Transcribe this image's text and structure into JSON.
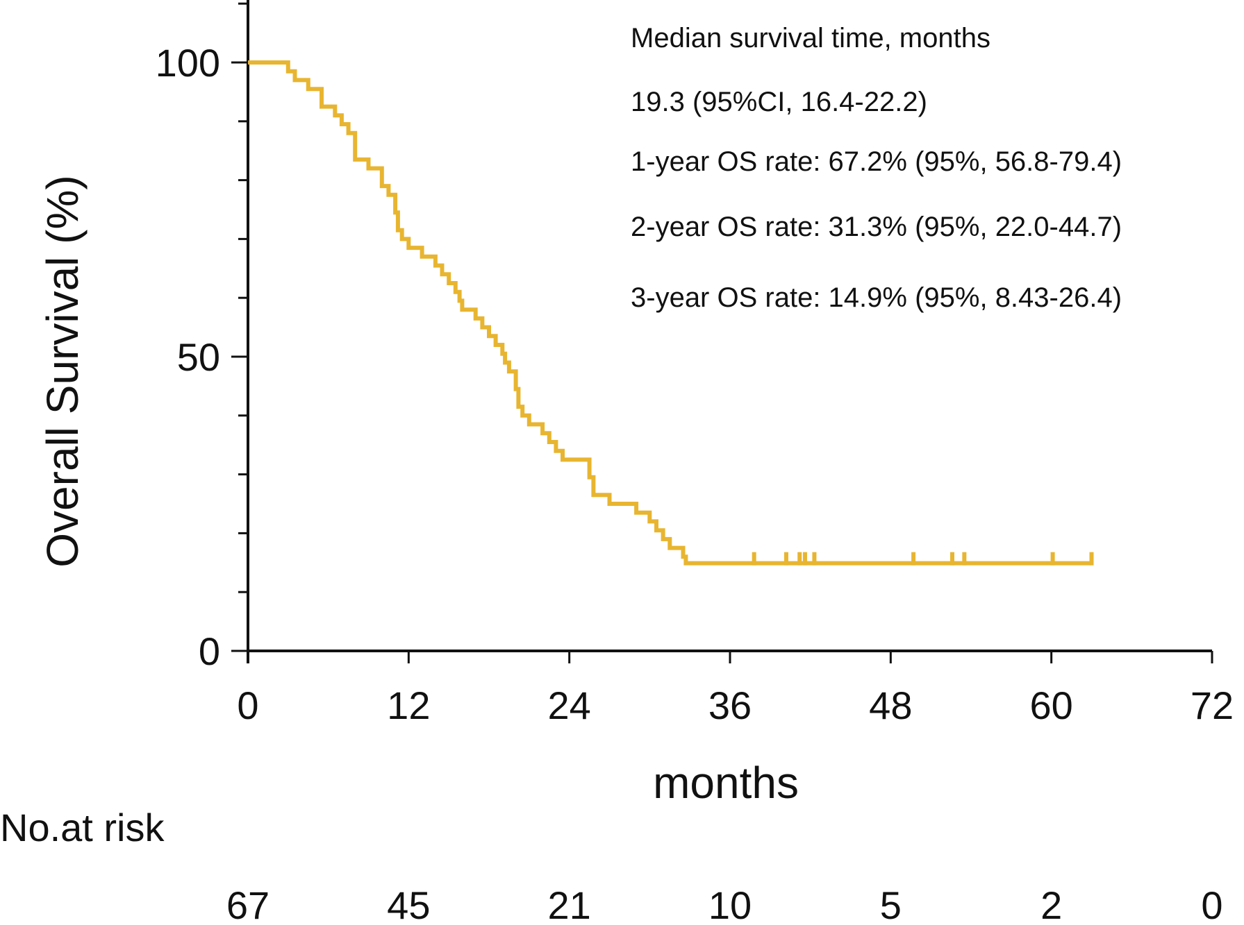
{
  "chart_data": {
    "type": "line",
    "subtype": "kaplan-meier",
    "title": "",
    "xlabel": "months",
    "ylabel": "Overall Survival (%)",
    "xlim": [
      0,
      72
    ],
    "ylim": [
      0,
      110
    ],
    "x_ticks": [
      0,
      12,
      24,
      36,
      48,
      60,
      72
    ],
    "y_ticks_labeled": [
      0,
      50,
      100
    ],
    "y_minor_step": 10,
    "series": [
      {
        "name": "Overall survival",
        "color": "#E8B530",
        "steps": [
          [
            0,
            100
          ],
          [
            3,
            100
          ],
          [
            3,
            98.5
          ],
          [
            3.5,
            98.5
          ],
          [
            3.5,
            97
          ],
          [
            4.5,
            97
          ],
          [
            4.5,
            95.5
          ],
          [
            5.5,
            95.5
          ],
          [
            5.5,
            92.5
          ],
          [
            6.5,
            92.5
          ],
          [
            6.5,
            91
          ],
          [
            7,
            91
          ],
          [
            7,
            89.5
          ],
          [
            7.5,
            89.5
          ],
          [
            7.5,
            88
          ],
          [
            8,
            88
          ],
          [
            8,
            86.5
          ],
          [
            8,
            86.5
          ],
          [
            8,
            83.5
          ],
          [
            9,
            83.5
          ],
          [
            9,
            82
          ],
          [
            10,
            82
          ],
          [
            10,
            80.5
          ],
          [
            10,
            80.5
          ],
          [
            10,
            79
          ],
          [
            10.5,
            79
          ],
          [
            10.5,
            77.5
          ],
          [
            11,
            77.5
          ],
          [
            11,
            74.5
          ],
          [
            11.2,
            74.5
          ],
          [
            11.2,
            71.5
          ],
          [
            11.5,
            71.5
          ],
          [
            11.5,
            70
          ],
          [
            12,
            70
          ],
          [
            12,
            68.5
          ],
          [
            13,
            68.5
          ],
          [
            13,
            67
          ],
          [
            14,
            67
          ],
          [
            14,
            65.5
          ],
          [
            14.5,
            65.5
          ],
          [
            14.5,
            64
          ],
          [
            15,
            64
          ],
          [
            15,
            62.5
          ],
          [
            15.5,
            62.5
          ],
          [
            15.5,
            61
          ],
          [
            15.8,
            61
          ],
          [
            15.8,
            59.5
          ],
          [
            16,
            59.5
          ],
          [
            16,
            58
          ],
          [
            17,
            58
          ],
          [
            17,
            56.5
          ],
          [
            17.5,
            56.5
          ],
          [
            17.5,
            55
          ],
          [
            18,
            55
          ],
          [
            18,
            53.5
          ],
          [
            18.5,
            53.5
          ],
          [
            18.5,
            52
          ],
          [
            19,
            52
          ],
          [
            19,
            50.5
          ],
          [
            19.2,
            50.5
          ],
          [
            19.2,
            49
          ],
          [
            19.5,
            49
          ],
          [
            19.5,
            47.5
          ],
          [
            20,
            47.5
          ],
          [
            20,
            44.5
          ],
          [
            20.2,
            44.5
          ],
          [
            20.2,
            41.5
          ],
          [
            20.5,
            41.5
          ],
          [
            20.5,
            40
          ],
          [
            21,
            40
          ],
          [
            21,
            38.5
          ],
          [
            22,
            38.5
          ],
          [
            22,
            37
          ],
          [
            22.5,
            37
          ],
          [
            22.5,
            35.5
          ],
          [
            23,
            35.5
          ],
          [
            23,
            34
          ],
          [
            23.5,
            34
          ],
          [
            23.5,
            32.5
          ],
          [
            25.5,
            32.5
          ],
          [
            25.5,
            29.5
          ],
          [
            25.8,
            29.5
          ],
          [
            25.8,
            26.5
          ],
          [
            27,
            26.5
          ],
          [
            27,
            25
          ],
          [
            29,
            25
          ],
          [
            29,
            23.5
          ],
          [
            30,
            23.5
          ],
          [
            30,
            22
          ],
          [
            30.5,
            22
          ],
          [
            30.5,
            20.5
          ],
          [
            31,
            20.5
          ],
          [
            31,
            19
          ],
          [
            31.5,
            19
          ],
          [
            31.5,
            17.5
          ],
          [
            32.5,
            17.5
          ],
          [
            32.5,
            16
          ],
          [
            32.7,
            16
          ],
          [
            32.7,
            14.9
          ],
          [
            63,
            14.9
          ]
        ],
        "censored": [
          37.8,
          40.2,
          41.2,
          41.6,
          42.3,
          49.7,
          52.6,
          53.5,
          60.1,
          63
        ]
      }
    ],
    "annotations": [
      "Median survival time, months",
      "19.3 (95%CI, 16.4-22.2)",
      "1-year OS rate: 67.2% (95%, 56.8-79.4)",
      "2-year OS rate: 31.3% (95%, 22.0-44.7)",
      "3-year OS rate: 14.9% (95%, 8.43-26.4)"
    ],
    "risk_table": {
      "title": "No.at risk",
      "times": [
        0,
        12,
        24,
        36,
        48,
        60,
        72
      ],
      "counts": [
        "67",
        "45",
        "21",
        "10",
        "5",
        "2",
        "0"
      ]
    }
  }
}
